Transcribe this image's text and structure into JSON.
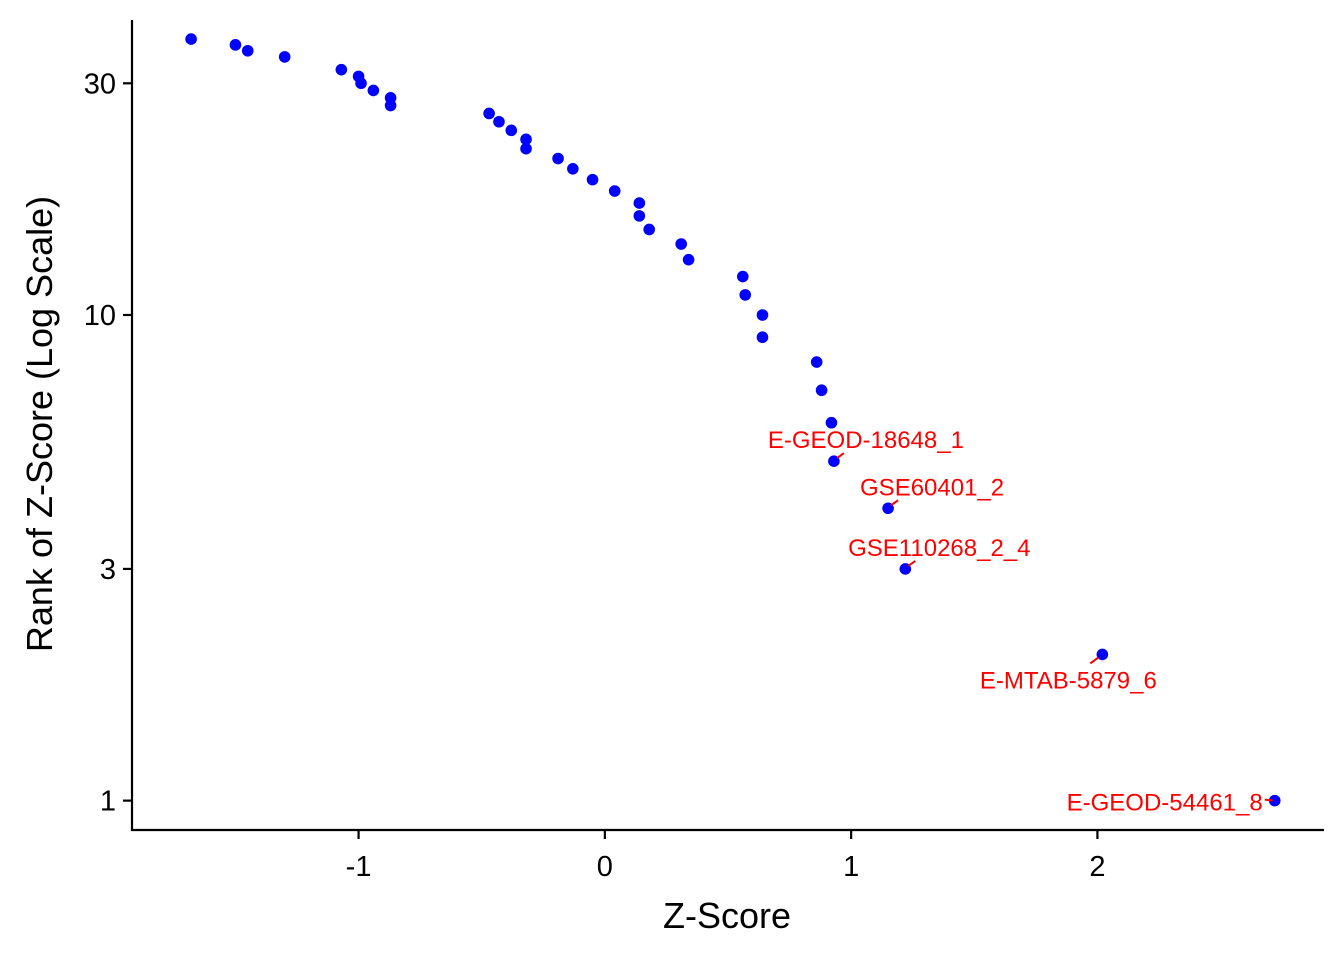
{
  "chart_data": {
    "type": "scatter",
    "title": "",
    "xlabel": "Z-Score",
    "ylabel": "Rank of Z-Score (Log Scale)",
    "xlim": [
      -1.92,
      2.92
    ],
    "ylim": [
      0.87,
      40.5
    ],
    "yscale": "log",
    "x_ticks": [
      -1,
      0,
      1,
      2
    ],
    "x_tick_labels": [
      "-1",
      "0",
      "1",
      "2"
    ],
    "y_ticks": [
      1,
      3,
      10,
      30
    ],
    "y_tick_labels": [
      "1",
      "3",
      "10",
      "30"
    ],
    "grid": false,
    "legend": "none",
    "point_color": "#0000ff",
    "label_color": "#ff0000",
    "points": [
      {
        "x": 2.72,
        "y": 1,
        "label": "E-GEOD-54461_8"
      },
      {
        "x": 2.02,
        "y": 2,
        "label": "E-MTAB-5879_6"
      },
      {
        "x": 1.22,
        "y": 3,
        "label": "GSE110268_2_4"
      },
      {
        "x": 1.15,
        "y": 4,
        "label": "GSE60401_2"
      },
      {
        "x": 0.93,
        "y": 5,
        "label": "E-GEOD-18648_1"
      },
      {
        "x": 0.92,
        "y": 6
      },
      {
        "x": 0.88,
        "y": 7
      },
      {
        "x": 0.86,
        "y": 8
      },
      {
        "x": 0.64,
        "y": 9
      },
      {
        "x": 0.64,
        "y": 10
      },
      {
        "x": 0.57,
        "y": 11
      },
      {
        "x": 0.56,
        "y": 12
      },
      {
        "x": 0.34,
        "y": 13
      },
      {
        "x": 0.31,
        "y": 14
      },
      {
        "x": 0.18,
        "y": 15
      },
      {
        "x": 0.14,
        "y": 16
      },
      {
        "x": 0.14,
        "y": 17
      },
      {
        "x": 0.04,
        "y": 18
      },
      {
        "x": -0.05,
        "y": 19
      },
      {
        "x": -0.13,
        "y": 20
      },
      {
        "x": -0.19,
        "y": 21
      },
      {
        "x": -0.32,
        "y": 22
      },
      {
        "x": -0.32,
        "y": 23
      },
      {
        "x": -0.38,
        "y": 24
      },
      {
        "x": -0.43,
        "y": 25
      },
      {
        "x": -0.47,
        "y": 26
      },
      {
        "x": -0.87,
        "y": 27
      },
      {
        "x": -0.87,
        "y": 28
      },
      {
        "x": -0.94,
        "y": 29
      },
      {
        "x": -0.99,
        "y": 30
      },
      {
        "x": -1.0,
        "y": 31
      },
      {
        "x": -1.07,
        "y": 32
      },
      {
        "x": -1.3,
        "y": 34
      },
      {
        "x": -1.45,
        "y": 35
      },
      {
        "x": -1.5,
        "y": 36
      },
      {
        "x": -1.68,
        "y": 37
      }
    ]
  }
}
